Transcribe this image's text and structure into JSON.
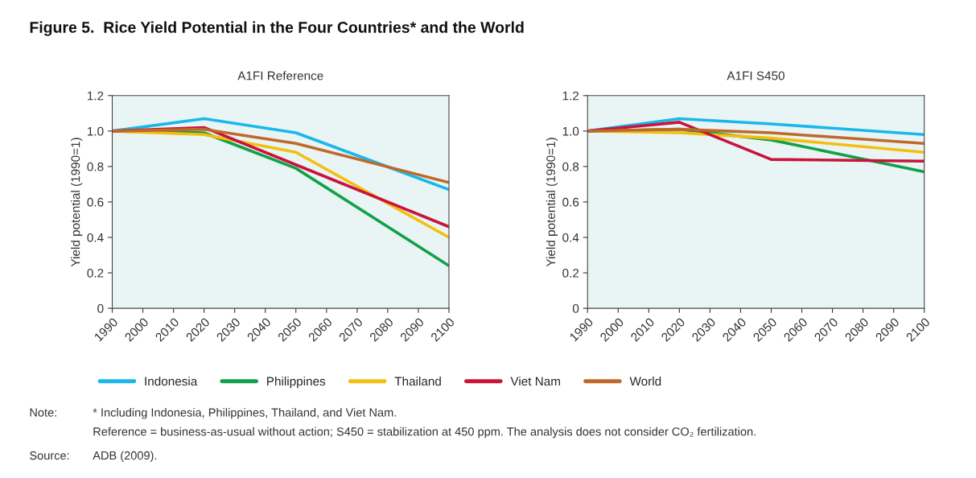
{
  "chart_data": [
    {
      "type": "line",
      "title": "A1FI Reference",
      "ylabel": "Yield potential (1990=1)",
      "x": [
        1990,
        2020,
        2050,
        2100
      ],
      "series": [
        {
          "name": "Indonesia",
          "color": "#1ab7ea",
          "values": [
            1.0,
            1.07,
            0.99,
            0.67
          ]
        },
        {
          "name": "Philippines",
          "color": "#13a049",
          "values": [
            1.0,
            0.99,
            0.79,
            0.24
          ]
        },
        {
          "name": "Thailand",
          "color": "#f5be0f",
          "values": [
            1.0,
            0.98,
            0.88,
            0.4
          ]
        },
        {
          "name": "Viet Nam",
          "color": "#c8143c",
          "values": [
            1.0,
            1.02,
            0.81,
            0.46
          ]
        },
        {
          "name": "World",
          "color": "#c0682a",
          "values": [
            1.0,
            1.01,
            0.93,
            0.71
          ]
        }
      ],
      "xlim": [
        1990,
        2100
      ],
      "xticks": [
        1990,
        2000,
        2010,
        2020,
        2030,
        2040,
        2050,
        2060,
        2070,
        2080,
        2090,
        2100
      ],
      "ylim": [
        0,
        1.2
      ],
      "yticks": [
        0,
        {
          "value": 0.2,
          "label": "0.2"
        },
        {
          "value": 0.4,
          "label": "0.4"
        },
        {
          "value": 0.6,
          "label": "0.6"
        },
        {
          "value": 0.8,
          "label": "0.8"
        },
        {
          "value": 1.0,
          "label": "1.0"
        },
        {
          "value": 1.2,
          "label": "1.2"
        }
      ],
      "grid": false,
      "legend": "bottom",
      "annotations": [
        "Figure 5.  Rice Yield Potential in the Four Countries* and the World",
        "Note:",
        "* Including Indonesia, Philippines, Thailand, and Viet Nam.",
        "Reference = business-as-usual without action; S450 = stabilization at 450 ppm. The analysis does not consider CO₂ fertilization.",
        "Source:",
        "ADB (2009)."
      ]
    },
    {
      "type": "line",
      "title": "A1FI S450",
      "ylabel": "Yield potential (1990=1)",
      "x": [
        1990,
        2020,
        2050,
        2100
      ],
      "series": [
        {
          "color": "#1ab7ea",
          "values": [
            1.0,
            1.07,
            1.04,
            0.98
          ]
        },
        {
          "color": "#13a049",
          "values": [
            1.0,
            1.01,
            0.95,
            0.77
          ]
        },
        {
          "color": "#f5be0f",
          "values": [
            1.0,
            0.99,
            0.96,
            0.88
          ]
        },
        {
          "color": "#c8143c",
          "values": [
            1.0,
            1.05,
            0.84,
            0.83
          ]
        },
        {
          "color": "#c0682a",
          "values": [
            1.0,
            1.01,
            0.99,
            0.93
          ]
        }
      ],
      "xlim": [
        1990,
        2100
      ],
      "xticks": [
        1990,
        2000,
        2010,
        2020,
        2030,
        2040,
        2050,
        2060,
        2070,
        2080,
        2090,
        2100
      ],
      "ylim": [
        0,
        1.2
      ],
      "yticks": [
        0,
        {
          "value": 0.2,
          "label": "0.2"
        },
        {
          "value": 0.4,
          "label": "0.4"
        },
        {
          "value": 0.6,
          "label": "0.6"
        },
        {
          "value": 0.8,
          "label": "0.8"
        },
        {
          "value": 1.0,
          "label": "1.0"
        },
        {
          "value": 1.2,
          "label": "1.2"
        }
      ],
      "grid": false
    }
  ]
}
